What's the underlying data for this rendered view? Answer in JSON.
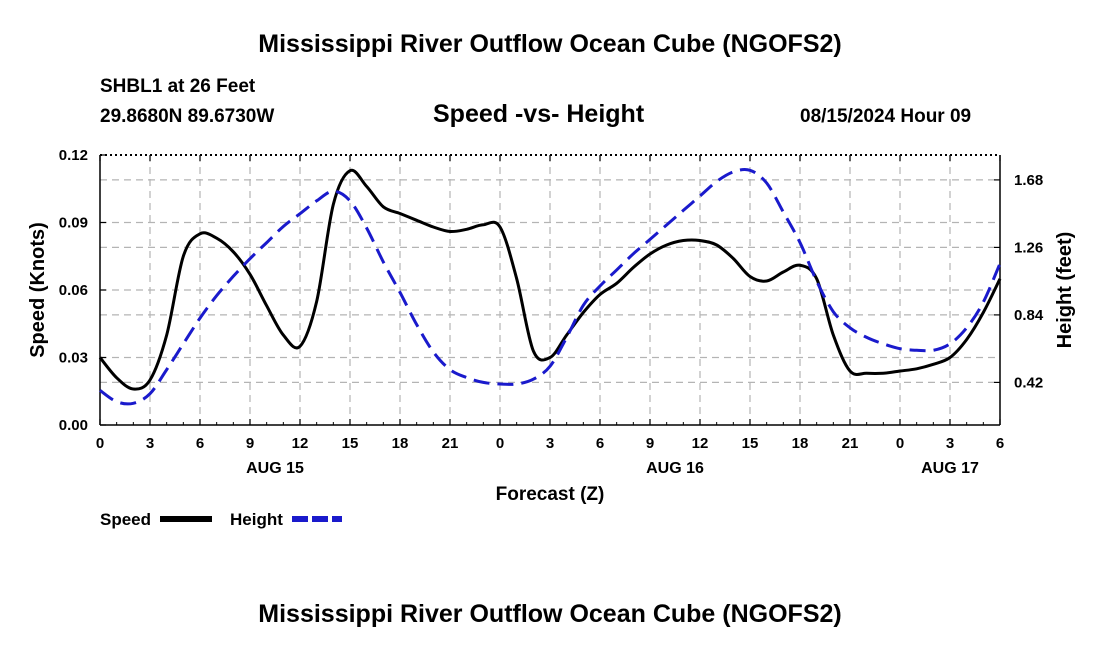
{
  "header": {
    "title": "Mississippi River Outflow Ocean Cube (NGOFS2)",
    "station": "SHBL1 at 26 Feet",
    "coords": "29.8680N  89.6730W",
    "chart_subtitle": "Speed -vs- Height",
    "date": "08/15/2024 Hour 09"
  },
  "footer": {
    "title": "Mississippi River Outflow Ocean Cube (NGOFS2)"
  },
  "colors": {
    "speed": "#000000",
    "height": "#1a1acc",
    "grid": "#b4b4b4"
  },
  "chart_data": {
    "type": "line",
    "title": "Speed -vs- Height",
    "xlabel": "Forecast (Z)",
    "ylabel": "Speed (Knots)",
    "y2label": "Height (feet)",
    "xlim": [
      0,
      54
    ],
    "ylim": [
      0,
      0.12
    ],
    "y2lim": [
      0.155,
      1.835
    ],
    "xticks": [
      0,
      3,
      6,
      9,
      12,
      15,
      18,
      21,
      24,
      27,
      30,
      33,
      36,
      39,
      42,
      45,
      48,
      51,
      54
    ],
    "xtick_labels": [
      "0",
      "3",
      "6",
      "9",
      "12",
      "15",
      "18",
      "21",
      "0",
      "3",
      "6",
      "9",
      "12",
      "15",
      "18",
      "21",
      "0",
      "3",
      "6"
    ],
    "date_labels": [
      {
        "x": 10.5,
        "label": "AUG 15"
      },
      {
        "x": 34.5,
        "label": "AUG 16"
      },
      {
        "x": 51,
        "label": "AUG 17"
      }
    ],
    "yticks": [
      0,
      0.03,
      0.06,
      0.09,
      0.12
    ],
    "ytick_labels": [
      "0.00",
      "0.03",
      "0.06",
      "0.09",
      "0.12"
    ],
    "y2ticks": [
      0.42,
      0.84,
      1.26,
      1.68
    ],
    "y2tick_labels": [
      "0.42",
      "0.84",
      "1.26",
      "1.68"
    ],
    "grid": true,
    "legend": [
      {
        "name": "Speed",
        "style": "solid"
      },
      {
        "name": "Height",
        "style": "dashed"
      }
    ],
    "series": [
      {
        "name": "Speed",
        "axis": "left",
        "style": "solid",
        "points": [
          [
            0,
            0.03
          ],
          [
            1,
            0.021
          ],
          [
            2,
            0.016
          ],
          [
            3,
            0.02
          ],
          [
            4,
            0.04
          ],
          [
            5,
            0.075
          ],
          [
            6,
            0.085
          ],
          [
            7,
            0.083
          ],
          [
            8,
            0.077
          ],
          [
            9,
            0.067
          ],
          [
            10,
            0.053
          ],
          [
            11,
            0.04
          ],
          [
            12,
            0.035
          ],
          [
            13,
            0.055
          ],
          [
            14,
            0.098
          ],
          [
            15,
            0.113
          ],
          [
            16,
            0.106
          ],
          [
            17,
            0.097
          ],
          [
            18,
            0.094
          ],
          [
            19,
            0.091
          ],
          [
            20,
            0.088
          ],
          [
            21,
            0.086
          ],
          [
            22,
            0.087
          ],
          [
            23,
            0.089
          ],
          [
            24,
            0.088
          ],
          [
            25,
            0.065
          ],
          [
            26,
            0.033
          ],
          [
            27,
            0.03
          ],
          [
            28,
            0.04
          ],
          [
            29,
            0.05
          ],
          [
            30,
            0.058
          ],
          [
            31,
            0.063
          ],
          [
            32,
            0.07
          ],
          [
            33,
            0.076
          ],
          [
            34,
            0.08
          ],
          [
            35,
            0.082
          ],
          [
            36,
            0.082
          ],
          [
            37,
            0.08
          ],
          [
            38,
            0.074
          ],
          [
            39,
            0.066
          ],
          [
            40,
            0.064
          ],
          [
            41,
            0.068
          ],
          [
            42,
            0.071
          ],
          [
            43,
            0.065
          ],
          [
            44,
            0.04
          ],
          [
            45,
            0.024
          ],
          [
            46,
            0.023
          ],
          [
            47,
            0.023
          ],
          [
            48,
            0.024
          ],
          [
            49,
            0.025
          ],
          [
            50,
            0.027
          ],
          [
            51,
            0.03
          ],
          [
            52,
            0.038
          ],
          [
            53,
            0.05
          ],
          [
            54,
            0.065
          ]
        ]
      },
      {
        "name": "Height",
        "axis": "right",
        "style": "dashed",
        "points": [
          [
            0,
            0.37
          ],
          [
            1,
            0.3
          ],
          [
            2,
            0.29
          ],
          [
            3,
            0.35
          ],
          [
            4,
            0.5
          ],
          [
            5,
            0.66
          ],
          [
            6,
            0.82
          ],
          [
            7,
            0.96
          ],
          [
            8,
            1.08
          ],
          [
            9,
            1.19
          ],
          [
            10,
            1.29
          ],
          [
            11,
            1.39
          ],
          [
            12,
            1.47
          ],
          [
            13,
            1.55
          ],
          [
            14,
            1.61
          ],
          [
            15,
            1.55
          ],
          [
            16,
            1.38
          ],
          [
            17,
            1.17
          ],
          [
            18,
            0.98
          ],
          [
            19,
            0.78
          ],
          [
            20,
            0.61
          ],
          [
            21,
            0.5
          ],
          [
            22,
            0.45
          ],
          [
            23,
            0.42
          ],
          [
            24,
            0.41
          ],
          [
            25,
            0.41
          ],
          [
            26,
            0.44
          ],
          [
            27,
            0.52
          ],
          [
            28,
            0.7
          ],
          [
            29,
            0.9
          ],
          [
            30,
            1.02
          ],
          [
            31,
            1.12
          ],
          [
            32,
            1.22
          ],
          [
            33,
            1.31
          ],
          [
            34,
            1.4
          ],
          [
            35,
            1.49
          ],
          [
            36,
            1.58
          ],
          [
            37,
            1.67
          ],
          [
            38,
            1.73
          ],
          [
            39,
            1.74
          ],
          [
            40,
            1.66
          ],
          [
            41,
            1.48
          ],
          [
            42,
            1.29
          ],
          [
            43,
            1.05
          ],
          [
            44,
            0.86
          ],
          [
            45,
            0.76
          ],
          [
            46,
            0.7
          ],
          [
            47,
            0.66
          ],
          [
            48,
            0.63
          ],
          [
            49,
            0.62
          ],
          [
            50,
            0.62
          ],
          [
            51,
            0.66
          ],
          [
            52,
            0.76
          ],
          [
            53,
            0.92
          ],
          [
            54,
            1.16
          ]
        ]
      }
    ]
  }
}
